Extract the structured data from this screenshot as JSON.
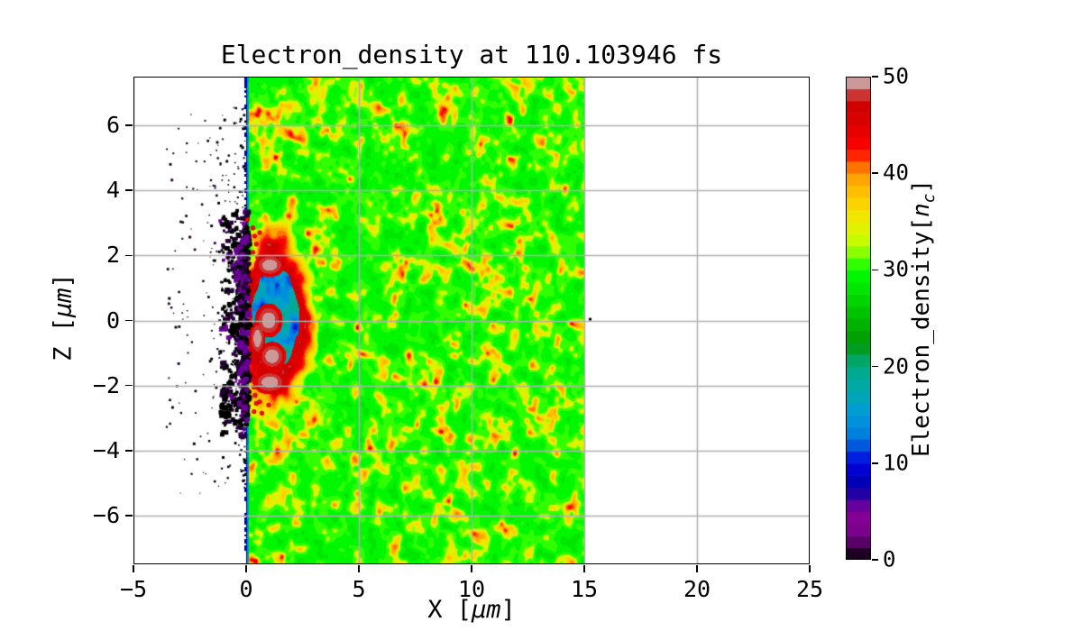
{
  "figure": {
    "background": "#ffffff"
  },
  "chart_data": {
    "type": "heatmap",
    "title": "Electron_density at 110.103946 fs",
    "xlabel": {
      "pre": "X [",
      "italic": "μm",
      "post": "]"
    },
    "ylabel": {
      "pre": "Z [",
      "italic": "μm",
      "post": "]"
    },
    "xlim": [
      -5,
      25
    ],
    "zlim": [
      -7.5,
      7.5
    ],
    "x_ticks": [
      -5,
      0,
      5,
      10,
      15,
      20,
      25
    ],
    "z_ticks": [
      6,
      4,
      2,
      0,
      -2,
      -4,
      -6
    ],
    "grid": {
      "on": true,
      "color": "#b0b0b0",
      "width": 1.5
    },
    "colorbar": {
      "label": {
        "pre": "Electron_density[",
        "italic": "n",
        "sub": "c",
        "post": "]"
      },
      "ticks": [
        0,
        10,
        20,
        30,
        40,
        50
      ],
      "vmin": 0,
      "vmax": 50,
      "levels": 40,
      "colormap": "nipy_spectral",
      "stops": [
        [
          0.0,
          0,
          0,
          0
        ],
        [
          0.05,
          0.467,
          0,
          0.533
        ],
        [
          0.1,
          0.533,
          0,
          0.6
        ],
        [
          0.15,
          0,
          0,
          0.667
        ],
        [
          0.2,
          0,
          0,
          0.867
        ],
        [
          0.25,
          0,
          0.467,
          0.867
        ],
        [
          0.3,
          0,
          0.6,
          0.867
        ],
        [
          0.35,
          0,
          0.667,
          0.667
        ],
        [
          0.4,
          0,
          0.667,
          0.533
        ],
        [
          0.45,
          0,
          0.6,
          0
        ],
        [
          0.5,
          0,
          0.733,
          0
        ],
        [
          0.55,
          0,
          0.867,
          0
        ],
        [
          0.6,
          0,
          1,
          0
        ],
        [
          0.65,
          0.733,
          1,
          0
        ],
        [
          0.7,
          0.933,
          0.933,
          0
        ],
        [
          0.75,
          1,
          0.8,
          0
        ],
        [
          0.8,
          1,
          0.6,
          0
        ],
        [
          0.85,
          1,
          0,
          0
        ],
        [
          0.9,
          0.867,
          0,
          0
        ],
        [
          0.95,
          0.8,
          0,
          0
        ],
        [
          1.0,
          0.8,
          0.8,
          0.8
        ]
      ]
    },
    "features": {
      "plasma": {
        "x_range": [
          0,
          15
        ],
        "base_density": 30,
        "speckle_density": 36
      },
      "vacuum_left": {
        "x_range": [
          -5,
          0
        ]
      },
      "vacuum_right": {
        "x_range": [
          15,
          25
        ]
      },
      "target_front": {
        "x": 0,
        "stripe_density": 4,
        "stripe_z_range": [
          -3,
          3
        ],
        "line_density": 13
      },
      "bubble": {
        "center": [
          1.25,
          0.0
        ],
        "rx": 1.35,
        "rz": 2.15,
        "interior_density": 14,
        "rim_density": 46,
        "core_density": 48,
        "cores": [
          [
            1.0,
            0.0,
            0.45,
            0.38
          ],
          [
            1.05,
            1.7,
            0.5,
            0.26
          ],
          [
            1.15,
            -1.1,
            0.45,
            0.32
          ],
          [
            1.05,
            -1.9,
            0.55,
            0.27
          ],
          [
            0.5,
            -0.55,
            0.26,
            0.4
          ]
        ]
      },
      "filament_dots": [
        [
          0.3,
          2.85
        ],
        [
          0.38,
          2.6
        ],
        [
          0.45,
          2.35
        ],
        [
          0.3,
          2.1
        ],
        [
          0.52,
          1.95
        ],
        [
          0.6,
          2.7
        ],
        [
          0.35,
          -2.8
        ],
        [
          0.45,
          -2.55
        ],
        [
          0.4,
          -2.3
        ],
        [
          0.6,
          -2.5
        ],
        [
          0.35,
          -2.05
        ],
        [
          0.7,
          -2.85
        ],
        [
          1.0,
          -2.6
        ],
        [
          0.05,
          3.1
        ]
      ],
      "speck": [
        15.2,
        0.08
      ],
      "speckles": {
        "sparse_count": 280,
        "sparse_x": [
          -3.6,
          -0.08
        ],
        "sparse_z": [
          -5.3,
          6.6
        ],
        "cluster_count": 320,
        "cluster_x": [
          -1.15,
          -0.02
        ],
        "cluster_z": [
          -3.6,
          3.6
        ],
        "purple_count": 45,
        "purple_x": [
          -0.42,
          -0.02
        ],
        "purple_z": [
          -2.7,
          2.7
        ],
        "colors": [
          "#000000",
          "#240036",
          "#6a0095"
        ]
      }
    }
  }
}
